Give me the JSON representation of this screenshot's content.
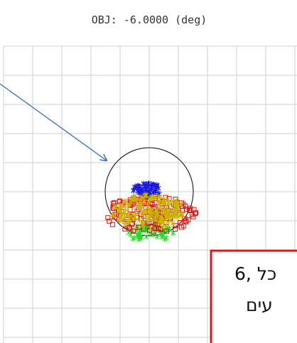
{
  "title": "OBJ: -6.0000 (deg)",
  "note": {
    "lines": [
      "6, כל",
      "עים"
    ]
  }
}
